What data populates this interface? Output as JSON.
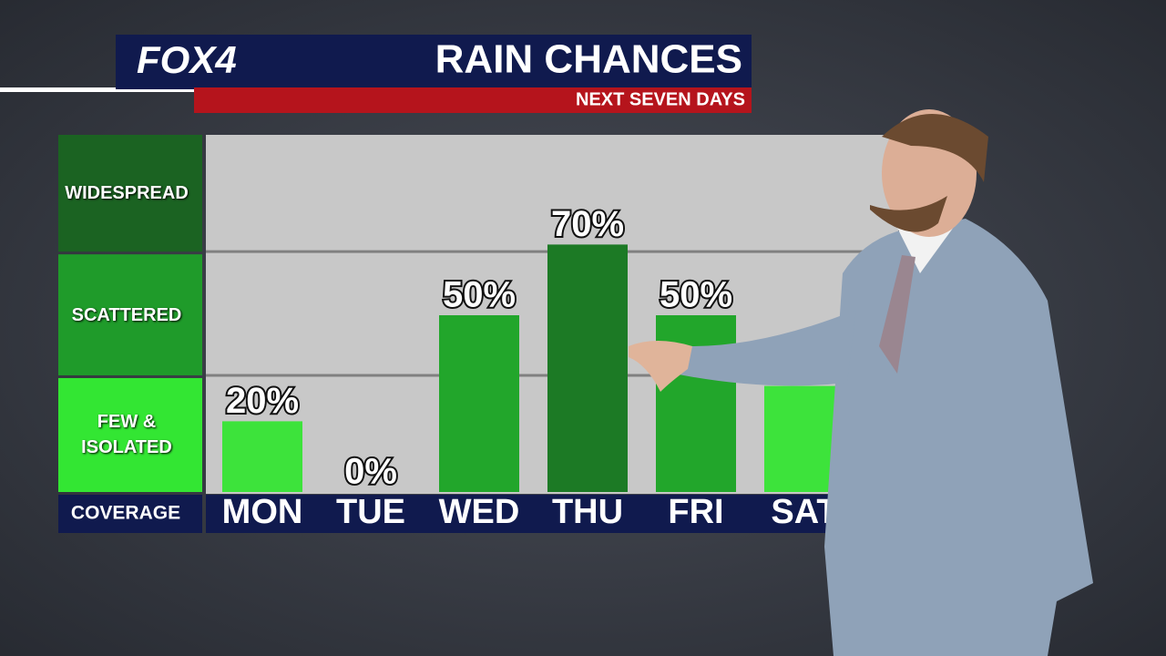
{
  "branding": "FOX4",
  "chart_data": {
    "type": "bar",
    "title": "RAIN CHANCES",
    "subtitle": "NEXT SEVEN DAYS",
    "categories": [
      "MON",
      "TUE",
      "WED",
      "THU",
      "FRI",
      "SAT"
    ],
    "values": [
      20,
      0,
      50,
      70,
      50,
      30
    ],
    "value_labels": [
      "20%",
      "0%",
      "50%",
      "70%",
      "50%",
      null
    ],
    "colors": [
      "#3de33b",
      "#3de33b",
      "#22a62b",
      "#1c7a25",
      "#22a62b",
      "#3de33b"
    ],
    "ylim": [
      0,
      100
    ],
    "coverage_label": "COVERAGE",
    "bands": [
      {
        "label": "FEW & ISOLATED",
        "from": 0,
        "to": 33,
        "color": "#33e633"
      },
      {
        "label": "SCATTERED",
        "from": 33,
        "to": 68,
        "color": "#1f9b2a"
      },
      {
        "label": "WIDESPREAD",
        "from": 68,
        "to": 100,
        "color": "#1b6322"
      }
    ]
  }
}
